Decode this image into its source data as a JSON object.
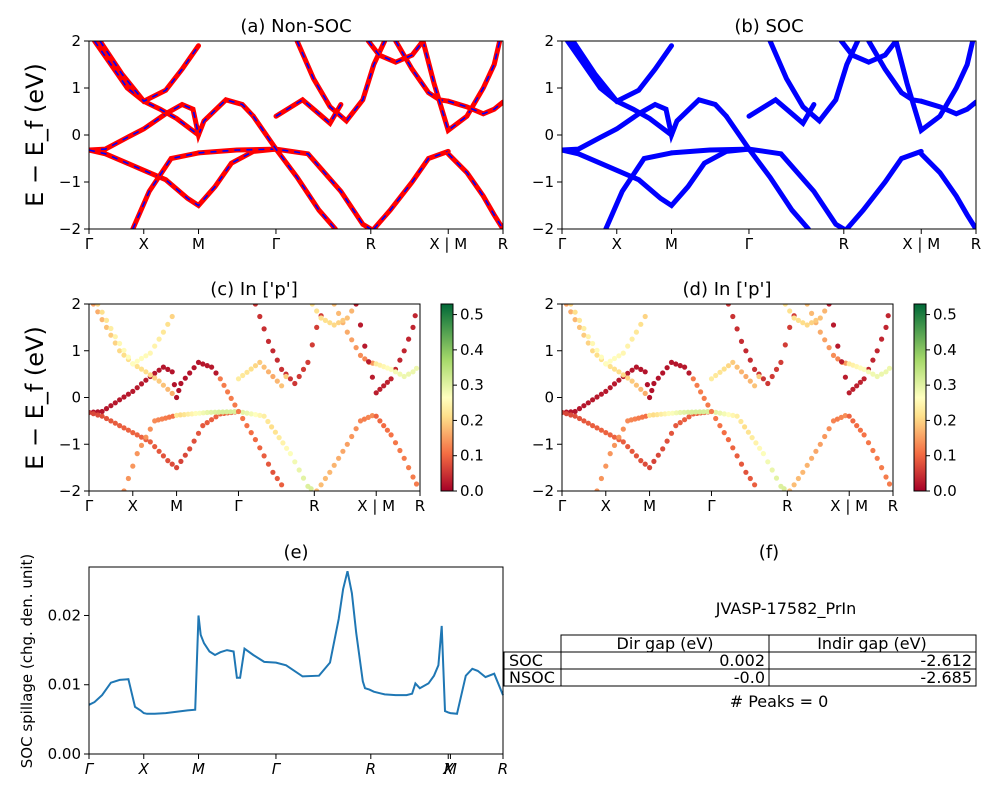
{
  "colors": {
    "nonsoc_line": "#ff0000",
    "nonsoc_dash": "#0000ff",
    "soc_line": "#0000ff",
    "spillage_line": "#1f77b4",
    "colormap": "RdYlGn"
  },
  "common": {
    "band_ylabel": "E − E_f (eV)",
    "band_ylim": [
      -2,
      2
    ],
    "band_yticks": [
      "−2",
      "−1",
      "0",
      "1",
      "2"
    ]
  },
  "chart_data": [
    {
      "panel": "a",
      "type": "line",
      "title": "(a) Non-SOC",
      "xticks": [
        "Γ",
        "X",
        "M",
        "Γ",
        "R",
        "X | M",
        "R"
      ],
      "k_positions": [
        0,
        0.5,
        1,
        1.707,
        2.573,
        3.28,
        3.78
      ],
      "ylim": [
        -2,
        2
      ]
    },
    {
      "panel": "b",
      "type": "line",
      "title": "(b) SOC",
      "xticks": [
        "Γ",
        "X",
        "M",
        "Γ",
        "R",
        "X | M",
        "R"
      ],
      "k_positions": [
        0,
        0.5,
        1,
        1.707,
        2.573,
        3.28,
        3.78
      ],
      "ylim": [
        -2,
        2
      ]
    },
    {
      "panel": "c",
      "type": "scatter",
      "title": "(c)  In ['p']",
      "xticks": [
        "Γ",
        "X",
        "M",
        "Γ",
        "R",
        "X | M",
        "R"
      ],
      "ylim": [
        -2,
        2
      ],
      "colorbar": {
        "ticks": [
          "0.0",
          "0.1",
          "0.2",
          "0.3",
          "0.4",
          "0.5"
        ],
        "range": [
          0,
          0.53
        ]
      }
    },
    {
      "panel": "d",
      "type": "scatter",
      "title": "(d) In ['p']",
      "xticks": [
        "Γ",
        "X",
        "M",
        "Γ",
        "R",
        "X | M",
        "R"
      ],
      "ylim": [
        -2,
        2
      ],
      "colorbar": {
        "ticks": [
          "0.0",
          "0.1",
          "0.2",
          "0.3",
          "0.4",
          "0.5"
        ],
        "range": [
          0,
          0.53
        ]
      }
    },
    {
      "panel": "e",
      "type": "line",
      "title": "(e)",
      "ylabel": "SOC spillage (chg. den. unit)",
      "ylim": [
        0,
        0.027
      ],
      "yticks": [
        "0.00",
        "0.01",
        "0.02"
      ],
      "xticks": [
        "Γ",
        "X",
        "M",
        "Γ",
        "R",
        "X",
        "M",
        "R"
      ],
      "k_positions": [
        0,
        0.5,
        1,
        1.707,
        2.573,
        3.28,
        3.3,
        3.78
      ],
      "series": [
        {
          "x": [
            0,
            0.05,
            0.12,
            0.2,
            0.28,
            0.36,
            0.42,
            0.47,
            0.5,
            0.53,
            0.6,
            0.7,
            0.8,
            0.9,
            0.97,
            1.0,
            1.02,
            1.05,
            1.1,
            1.15,
            1.2,
            1.26,
            1.32,
            1.35,
            1.36,
            1.38,
            1.42,
            1.5,
            1.6,
            1.707,
            1.8,
            1.95,
            2.1,
            2.2,
            2.28,
            2.32,
            2.36,
            2.4,
            2.44,
            2.5,
            2.52,
            2.56,
            2.6,
            2.7,
            2.8,
            2.9,
            2.95,
            2.98,
            3.02,
            3.1,
            3.15,
            3.19,
            3.22,
            3.25,
            3.28,
            3.3,
            3.36,
            3.44,
            3.5,
            3.55,
            3.62,
            3.7,
            3.78
          ],
          "y": [
            0.0071,
            0.0075,
            0.0085,
            0.0103,
            0.0107,
            0.0108,
            0.0068,
            0.0063,
            0.0059,
            0.0058,
            0.0058,
            0.0059,
            0.0061,
            0.0063,
            0.0064,
            0.02,
            0.0172,
            0.016,
            0.0148,
            0.0143,
            0.0147,
            0.015,
            0.0148,
            0.011,
            0.011,
            0.011,
            0.0152,
            0.0143,
            0.0133,
            0.0132,
            0.0128,
            0.0112,
            0.0113,
            0.0132,
            0.0195,
            0.0238,
            0.0264,
            0.0232,
            0.0175,
            0.0105,
            0.0095,
            0.0093,
            0.009,
            0.0086,
            0.0085,
            0.0085,
            0.0087,
            0.0102,
            0.0095,
            0.0102,
            0.0113,
            0.0128,
            0.0185,
            0.0062,
            0.006,
            0.0059,
            0.0058,
            0.0113,
            0.0123,
            0.012,
            0.0111,
            0.0116,
            0.0085
          ]
        }
      ]
    },
    {
      "panel": "f",
      "type": "table",
      "title": "(f)",
      "material": "JVASP-17582_PrIn",
      "columns": [
        "Dir gap (eV)",
        "Indir gap (eV)"
      ],
      "rows": [
        {
          "label": "SOC",
          "dir": "0.002",
          "indir": "-2.612"
        },
        {
          "label": "NSOC",
          "dir": "-0.0",
          "indir": "-2.685"
        }
      ],
      "footer": "# Peaks = 0"
    }
  ]
}
